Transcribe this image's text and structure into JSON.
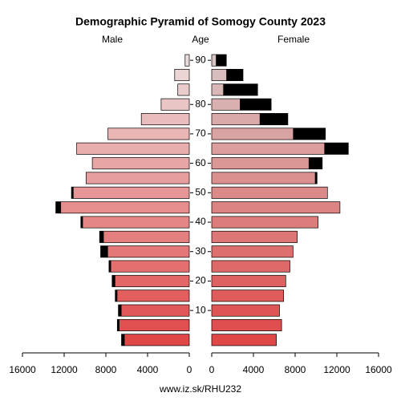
{
  "chart_data": {
    "type": "pyramid",
    "title": "Demographic Pyramid of Somogy County 2023",
    "left_label": "Male",
    "center_label": "Age",
    "right_label": "Female",
    "source": "www.iz.sk/RHU232",
    "categories": [
      "90",
      null,
      null,
      "80",
      null,
      "70",
      null,
      "60",
      null,
      "50",
      null,
      "40",
      null,
      "30",
      null,
      "20",
      null,
      "10",
      null,
      null
    ],
    "series": [
      {
        "name": "Male",
        "colors": [
          "#ecdcdc",
          "#e04848"
        ],
        "values": [
          400,
          1400,
          1100,
          2700,
          4600,
          7800,
          10800,
          9300,
          9900,
          11300,
          12800,
          10400,
          8600,
          8500,
          7700,
          7400,
          7100,
          6800,
          6900,
          6500
        ]
      },
      {
        "name": "Female",
        "colors": [
          "#d8c4c4",
          "#e04848"
        ],
        "values": [
          1400,
          3000,
          4400,
          5700,
          7300,
          10900,
          13100,
          10600,
          10100,
          11100,
          12300,
          10200,
          8200,
          7800,
          7500,
          7100,
          6900,
          6500,
          6700,
          6200
        ]
      }
    ],
    "excess_color": "#000000",
    "xlim": [
      0,
      16000
    ],
    "xticks": [
      0,
      4000,
      8000,
      12000,
      16000
    ]
  }
}
